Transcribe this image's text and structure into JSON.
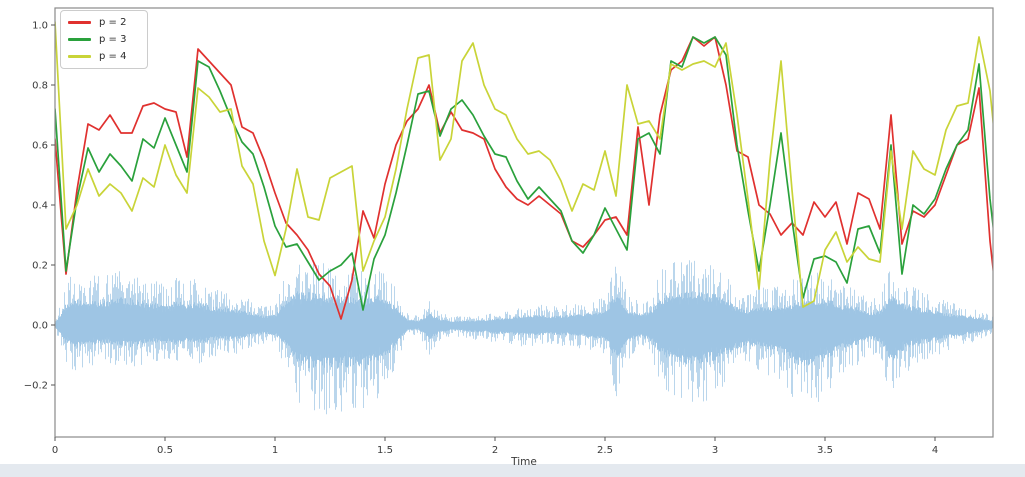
{
  "figure": {
    "xlabel": "Time",
    "background": "#ffffff",
    "spine_color": "#8a8a8a",
    "tick_color": "#3a3a3a"
  },
  "legend": {
    "entries": [
      {
        "label": "p = 2",
        "color": "#e0312f"
      },
      {
        "label": "p = 3",
        "color": "#2aa13c"
      },
      {
        "label": "p = 4",
        "color": "#c9d438"
      }
    ]
  },
  "chart_data": {
    "type": "line",
    "title": "",
    "xlabel": "Time",
    "ylabel": "",
    "xlim": [
      0,
      4.264
    ],
    "ylim": [
      -0.373,
      1.057
    ],
    "grid": false,
    "legend_position": "upper left",
    "x_tick_values": [
      0,
      0.5,
      1,
      1.5,
      2,
      2.5,
      3,
      3.5,
      4
    ],
    "x_tick_labels": [
      "0",
      "0.5",
      "1",
      "1.5",
      "2",
      "2.5",
      "3",
      "3.5",
      "4"
    ],
    "y_tick_values": [
      1.0,
      0.8,
      0.6,
      0.4,
      0.2,
      0.0,
      -0.2
    ],
    "y_tick_labels": [
      "1.0",
      "0.8",
      "0.6",
      "0.4",
      "0.2",
      "0.0",
      "−0.2"
    ],
    "x_step": 0.05,
    "series": [
      {
        "name": "p = 2",
        "color": "#e0312f",
        "values": [
          0.62,
          0.17,
          0.45,
          0.67,
          0.65,
          0.7,
          0.64,
          0.64,
          0.73,
          0.74,
          0.72,
          0.71,
          0.56,
          0.92,
          0.88,
          0.84,
          0.8,
          0.66,
          0.64,
          0.55,
          0.44,
          0.34,
          0.3,
          0.25,
          0.17,
          0.13,
          0.02,
          0.15,
          0.38,
          0.29,
          0.47,
          0.6,
          0.68,
          0.72,
          0.8,
          0.64,
          0.71,
          0.65,
          0.64,
          0.62,
          0.52,
          0.46,
          0.42,
          0.4,
          0.43,
          0.4,
          0.37,
          0.28,
          0.26,
          0.3,
          0.35,
          0.36,
          0.3,
          0.66,
          0.4,
          0.7,
          0.85,
          0.88,
          0.96,
          0.93,
          0.96,
          0.8,
          0.58,
          0.56,
          0.4,
          0.37,
          0.3,
          0.34,
          0.3,
          0.41,
          0.36,
          0.41,
          0.27,
          0.44,
          0.42,
          0.32,
          0.7,
          0.27,
          0.38,
          0.36,
          0.4,
          0.5,
          0.6,
          0.62,
          0.79,
          0.28,
          -0.05
        ]
      },
      {
        "name": "p = 3",
        "color": "#2aa13c",
        "values": [
          0.72,
          0.18,
          0.42,
          0.59,
          0.51,
          0.57,
          0.53,
          0.48,
          0.62,
          0.59,
          0.69,
          0.6,
          0.51,
          0.88,
          0.86,
          0.78,
          0.69,
          0.61,
          0.57,
          0.46,
          0.33,
          0.26,
          0.27,
          0.21,
          0.15,
          0.18,
          0.2,
          0.24,
          0.05,
          0.22,
          0.3,
          0.44,
          0.6,
          0.77,
          0.78,
          0.63,
          0.72,
          0.75,
          0.7,
          0.63,
          0.57,
          0.56,
          0.48,
          0.42,
          0.46,
          0.42,
          0.38,
          0.28,
          0.24,
          0.3,
          0.39,
          0.32,
          0.25,
          0.62,
          0.64,
          0.57,
          0.88,
          0.86,
          0.96,
          0.94,
          0.96,
          0.9,
          0.6,
          0.38,
          0.18,
          0.4,
          0.64,
          0.35,
          0.09,
          0.22,
          0.23,
          0.21,
          0.14,
          0.32,
          0.33,
          0.24,
          0.6,
          0.17,
          0.4,
          0.37,
          0.42,
          0.52,
          0.6,
          0.65,
          0.87,
          0.42,
          0.1
        ]
      },
      {
        "name": "p = 4",
        "color": "#c9d438",
        "values": [
          1.01,
          0.32,
          0.4,
          0.52,
          0.43,
          0.47,
          0.44,
          0.38,
          0.49,
          0.46,
          0.6,
          0.5,
          0.44,
          0.79,
          0.76,
          0.71,
          0.72,
          0.53,
          0.47,
          0.28,
          0.165,
          0.32,
          0.52,
          0.36,
          0.35,
          0.49,
          0.51,
          0.53,
          0.18,
          0.28,
          0.36,
          0.52,
          0.72,
          0.89,
          0.9,
          0.55,
          0.62,
          0.88,
          0.94,
          0.8,
          0.72,
          0.7,
          0.62,
          0.57,
          0.58,
          0.55,
          0.48,
          0.38,
          0.47,
          0.45,
          0.58,
          0.43,
          0.8,
          0.67,
          0.68,
          0.62,
          0.87,
          0.85,
          0.87,
          0.88,
          0.86,
          0.94,
          0.7,
          0.42,
          0.12,
          0.55,
          0.88,
          0.45,
          0.06,
          0.08,
          0.25,
          0.31,
          0.21,
          0.26,
          0.22,
          0.21,
          0.58,
          0.32,
          0.58,
          0.52,
          0.5,
          0.65,
          0.73,
          0.74,
          0.96,
          0.78,
          0.42
        ]
      }
    ],
    "waveform": {
      "name": "audio-waveform",
      "color": "#9cc4e4",
      "x_step": 0.05,
      "envelope_pos": [
        0.02,
        0.15,
        0.18,
        0.17,
        0.16,
        0.17,
        0.19,
        0.18,
        0.16,
        0.15,
        0.14,
        0.16,
        0.15,
        0.16,
        0.13,
        0.12,
        0.11,
        0.1,
        0.08,
        0.06,
        0.07,
        0.18,
        0.23,
        0.22,
        0.21,
        0.2,
        0.2,
        0.19,
        0.18,
        0.21,
        0.18,
        0.12,
        0.04,
        0.03,
        0.08,
        0.04,
        0.03,
        0.03,
        0.03,
        0.035,
        0.04,
        0.05,
        0.06,
        0.065,
        0.07,
        0.06,
        0.065,
        0.07,
        0.08,
        0.08,
        0.1,
        0.22,
        0.1,
        0.08,
        0.09,
        0.18,
        0.22,
        0.22,
        0.23,
        0.22,
        0.21,
        0.18,
        0.12,
        0.1,
        0.13,
        0.12,
        0.13,
        0.15,
        0.16,
        0.17,
        0.18,
        0.15,
        0.13,
        0.12,
        0.08,
        0.1,
        0.2,
        0.15,
        0.13,
        0.11,
        0.1,
        0.08,
        0.07,
        0.06,
        0.05,
        0.03,
        0.02
      ],
      "envelope_neg": [
        0.02,
        0.13,
        0.16,
        0.14,
        0.13,
        0.13,
        0.14,
        0.15,
        0.13,
        0.12,
        0.12,
        0.13,
        0.12,
        0.13,
        0.11,
        0.1,
        0.1,
        0.09,
        0.07,
        0.06,
        0.07,
        0.15,
        0.25,
        0.29,
        0.28,
        0.3,
        0.29,
        0.28,
        0.3,
        0.26,
        0.22,
        0.13,
        0.04,
        0.03,
        0.1,
        0.05,
        0.04,
        0.04,
        0.05,
        0.05,
        0.06,
        0.06,
        0.07,
        0.07,
        0.07,
        0.065,
        0.07,
        0.07,
        0.08,
        0.09,
        0.1,
        0.24,
        0.12,
        0.08,
        0.1,
        0.2,
        0.24,
        0.26,
        0.27,
        0.26,
        0.24,
        0.2,
        0.16,
        0.14,
        0.15,
        0.17,
        0.18,
        0.26,
        0.28,
        0.27,
        0.24,
        0.18,
        0.15,
        0.13,
        0.09,
        0.12,
        0.25,
        0.18,
        0.14,
        0.12,
        0.11,
        0.09,
        0.08,
        0.06,
        0.05,
        0.03,
        0.02
      ]
    }
  }
}
